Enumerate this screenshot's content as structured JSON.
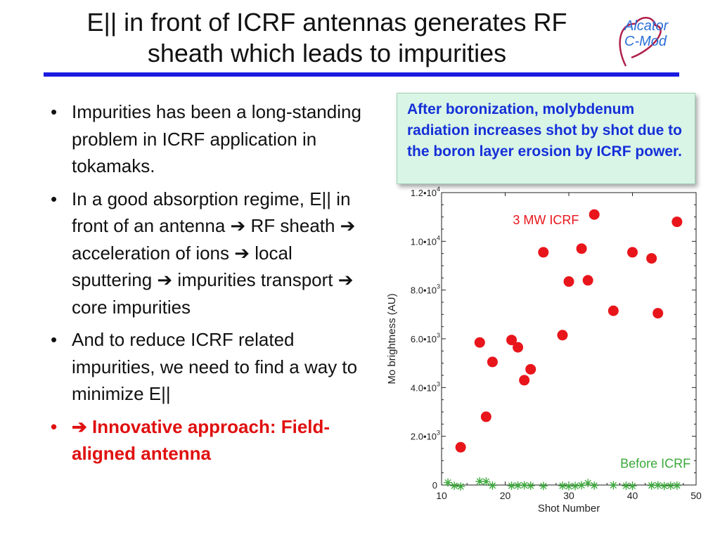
{
  "slide": {
    "title_lines": [
      "E|| in front of ICRF antennas generates RF",
      "sheath which leads to impurities"
    ],
    "logo_lines": [
      "Alcator",
      "C-Mod"
    ],
    "bullets": [
      "Impurities has been a long-standing problem in ICRF application in tokamaks.",
      "In a good absorption regime, E|| in front of an antenna ➔ RF sheath ➔ acceleration of ions ➔ local sputtering ➔ impurities transport ➔ core impurities",
      "And to reduce ICRF related impurities, we need to find a way to minimize E||"
    ],
    "bullet_glyph": "•",
    "accent_bullet": "➔ Innovative approach: Field-aligned antenna",
    "callout": "After boronization, molybdenum radiation increases shot by shot due to the boron layer erosion by ICRF power.",
    "colors": {
      "rule": "#1a1ae0",
      "accent": "#e01010",
      "callout_text": "#1530d8",
      "callout_bg": "#d9f5e6",
      "logo": "#2a6fd6"
    }
  },
  "chart_data": {
    "type": "scatter",
    "xlabel": "Shot Number",
    "ylabel": "Mo brightness (AU)",
    "xlim": [
      10,
      50
    ],
    "ylim": [
      0,
      12000
    ],
    "x_ticks": [
      "10",
      "20",
      "30",
      "40",
      "50"
    ],
    "y_ticks": [
      {
        "value": 0,
        "label": "0"
      },
      {
        "value": 2000,
        "label": "2.0•10",
        "exp": "3"
      },
      {
        "value": 4000,
        "label": "4.0•10",
        "exp": "3"
      },
      {
        "value": 6000,
        "label": "6.0•10",
        "exp": "3"
      },
      {
        "value": 8000,
        "label": "8.0•10",
        "exp": "3"
      },
      {
        "value": 10000,
        "label": "1.0•10",
        "exp": "4"
      },
      {
        "value": 12000,
        "label": "1.2•10",
        "exp": "4"
      }
    ],
    "series": [
      {
        "name": "3 MW ICRF",
        "color": "#e8151b",
        "marker": "circle",
        "points": [
          [
            13,
            1550
          ],
          [
            16,
            5850
          ],
          [
            17,
            2800
          ],
          [
            18,
            5050
          ],
          [
            21,
            5950
          ],
          [
            22,
            5650
          ],
          [
            23,
            4300
          ],
          [
            24,
            4750
          ],
          [
            26,
            9550
          ],
          [
            29,
            6150
          ],
          [
            30,
            8350
          ],
          [
            32,
            9700
          ],
          [
            33,
            8400
          ],
          [
            34,
            11100
          ],
          [
            37,
            7150
          ],
          [
            40,
            9550
          ],
          [
            43,
            9300
          ],
          [
            44,
            7050
          ],
          [
            47,
            10800
          ]
        ]
      },
      {
        "name": "Before ICRF",
        "color": "#3aa83a",
        "marker": "star",
        "points": [
          [
            11,
            100
          ],
          [
            12,
            -30
          ],
          [
            13,
            -60
          ],
          [
            16,
            150
          ],
          [
            17,
            140
          ],
          [
            18,
            -20
          ],
          [
            21,
            -30
          ],
          [
            22,
            -20
          ],
          [
            23,
            -10
          ],
          [
            24,
            -30
          ],
          [
            26,
            -40
          ],
          [
            29,
            -30
          ],
          [
            30,
            -50
          ],
          [
            31,
            -40
          ],
          [
            32,
            -10
          ],
          [
            33,
            80
          ],
          [
            34,
            -20
          ],
          [
            37,
            -10
          ],
          [
            39,
            -30
          ],
          [
            40,
            -40
          ],
          [
            43,
            -20
          ],
          [
            44,
            -10
          ],
          [
            45,
            -40
          ],
          [
            46,
            -30
          ],
          [
            47,
            -20
          ]
        ]
      }
    ],
    "grid": false
  }
}
